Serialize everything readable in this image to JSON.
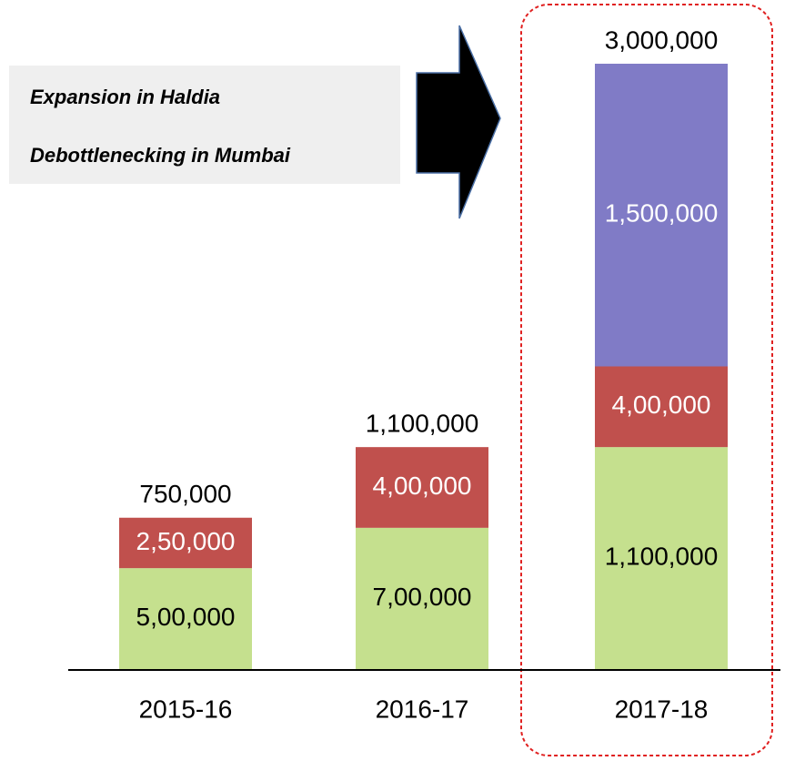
{
  "chart_data": {
    "type": "stacked_bar",
    "categories": [
      "2015-16",
      "2016-17",
      "2017-18"
    ],
    "series": [
      {
        "color": "#c5e08e",
        "text_color": "#000000",
        "values": [
          500000,
          700000,
          1100000
        ],
        "value_labels": [
          "5,00,000",
          "7,00,000",
          "1,100,000"
        ]
      },
      {
        "color": "#c0504d",
        "text_color": "#ffffff",
        "values": [
          250000,
          400000,
          400000
        ],
        "value_labels": [
          "2,50,000",
          "4,00,000",
          "4,00,000"
        ]
      },
      {
        "color": "#807bc6",
        "text_color": "#ffffff",
        "values": [
          null,
          null,
          1500000
        ],
        "value_labels": [
          null,
          null,
          "1,500,000"
        ]
      }
    ],
    "totals": [
      750000,
      1100000,
      3000000
    ],
    "total_labels": [
      "750,000",
      "1,100,000",
      "3,000,000"
    ],
    "ylim": [
      0,
      3000000
    ],
    "annotations": [
      "Expansion in Haldia",
      "Debottlenecking in Mumbai"
    ]
  }
}
